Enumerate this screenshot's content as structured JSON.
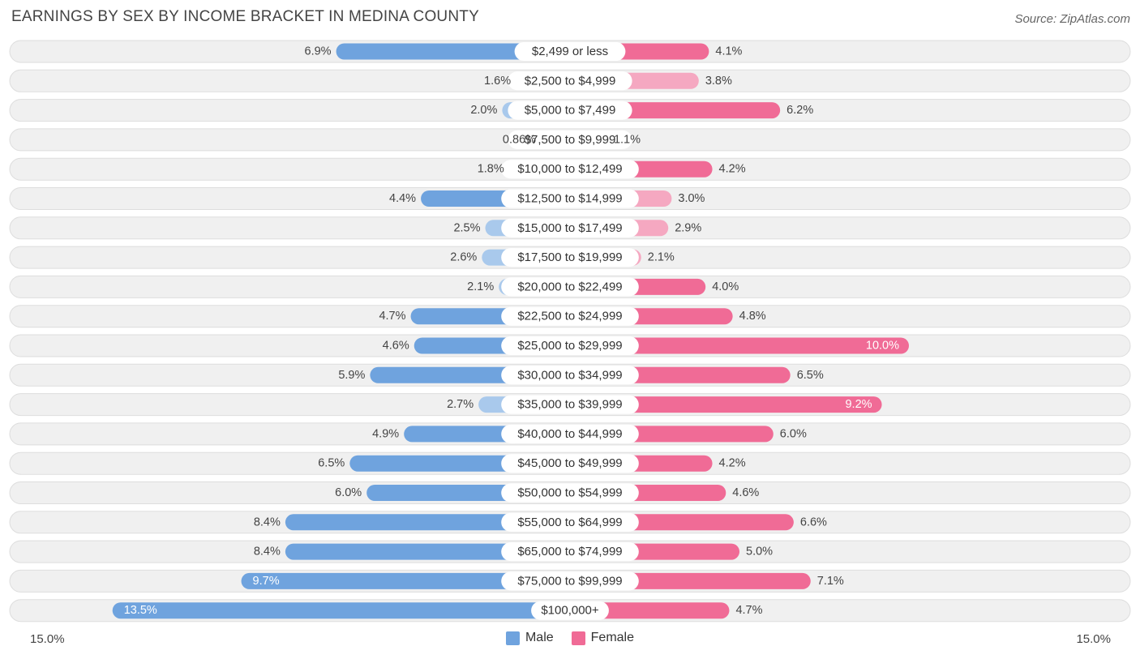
{
  "title": "EARNINGS BY SEX BY INCOME BRACKET IN MEDINA COUNTY",
  "source": "Source: ZipAtlas.com",
  "axis": {
    "left_label": "15.0%",
    "right_label": "15.0%"
  },
  "legend": {
    "male_label": "Male",
    "female_label": "Female"
  },
  "colors": {
    "male": "#6fa3de",
    "male_light": "#a9c9ec",
    "female": "#f06b96",
    "female_light": "#f5a8c1",
    "row_bg": "#f0f0f0",
    "row_border": "#dddddd"
  },
  "chart_data": {
    "type": "bar",
    "orientation": "horizontal-diverging",
    "title": "EARNINGS BY SEX BY INCOME BRACKET IN MEDINA COUNTY",
    "xlim": [
      -15.0,
      15.0
    ],
    "categories": [
      "$2,499 or less",
      "$2,500 to $4,999",
      "$5,000 to $7,499",
      "$7,500 to $9,999",
      "$10,000 to $12,499",
      "$12,500 to $14,999",
      "$15,000 to $17,499",
      "$17,500 to $19,999",
      "$20,000 to $22,499",
      "$22,500 to $24,999",
      "$25,000 to $29,999",
      "$30,000 to $34,999",
      "$35,000 to $39,999",
      "$40,000 to $44,999",
      "$45,000 to $49,999",
      "$50,000 to $54,999",
      "$55,000 to $64,999",
      "$65,000 to $74,999",
      "$75,000 to $99,999",
      "$100,000+"
    ],
    "series": [
      {
        "name": "Male",
        "values": [
          6.9,
          1.6,
          2.0,
          0.86,
          1.8,
          4.4,
          2.5,
          2.6,
          2.1,
          4.7,
          4.6,
          5.9,
          2.7,
          4.9,
          6.5,
          6.0,
          8.4,
          8.4,
          9.7,
          13.5
        ],
        "labels": [
          "6.9%",
          "1.6%",
          "2.0%",
          "0.86%",
          "1.8%",
          "4.4%",
          "2.5%",
          "2.6%",
          "2.1%",
          "4.7%",
          "4.6%",
          "5.9%",
          "2.7%",
          "4.9%",
          "6.5%",
          "6.0%",
          "8.4%",
          "8.4%",
          "9.7%",
          "13.5%"
        ]
      },
      {
        "name": "Female",
        "values": [
          4.1,
          3.8,
          6.2,
          1.1,
          4.2,
          3.0,
          2.9,
          2.1,
          4.0,
          4.8,
          10.0,
          6.5,
          9.2,
          6.0,
          4.2,
          4.6,
          6.6,
          5.0,
          7.1,
          4.7
        ],
        "labels": [
          "4.1%",
          "3.8%",
          "6.2%",
          "1.1%",
          "4.2%",
          "3.0%",
          "2.9%",
          "2.1%",
          "4.0%",
          "4.8%",
          "10.0%",
          "6.5%",
          "9.2%",
          "6.0%",
          "4.2%",
          "4.6%",
          "6.6%",
          "5.0%",
          "7.1%",
          "4.7%"
        ]
      }
    ]
  }
}
